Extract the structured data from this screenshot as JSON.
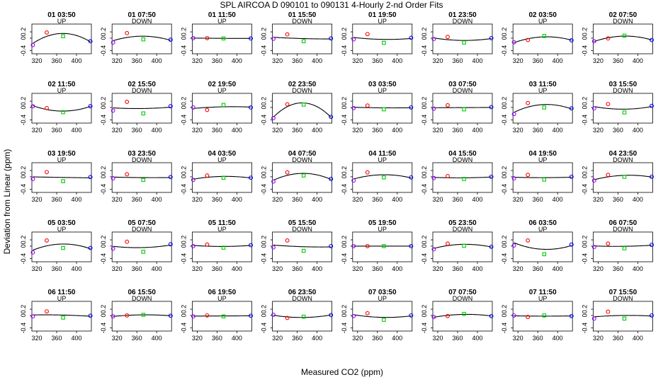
{
  "title": "SPL   AIRCOA D   090101 to 090131   4-Hourly 2-nd Order Fits",
  "xlabel": "Measured CO2 (ppm)",
  "ylabel": "Deviation from Linear (ppm)",
  "colors": {
    "fit_line": "#000000",
    "point_low": "#9900ff",
    "point_red": "#ff0000",
    "point_green": "#00cc00",
    "point_high": "#0000ff"
  },
  "chart_data": {
    "type": "scatter",
    "layout": "small-multiples 5 rows x 8 columns",
    "shared_axes": {
      "xlim": [
        310,
        430
      ],
      "xticks": [
        320,
        360,
        400
      ],
      "ylim": [
        -0.5,
        0.45
      ],
      "yticks": [
        -0.4,
        0,
        0.2
      ]
    },
    "x": [
      312,
      340,
      373,
      428
    ],
    "fit": "second-order polynomial",
    "panels": [
      {
        "time": "01 03:50",
        "direction": "UP",
        "y": [
          -0.22,
          0.18,
          0.06,
          -0.1
        ]
      },
      {
        "time": "01 07:50",
        "direction": "DOWN",
        "y": [
          -0.14,
          0.16,
          -0.04,
          -0.05
        ]
      },
      {
        "time": "01 11:50",
        "direction": "UP",
        "y": [
          0.0,
          0.0,
          -0.01,
          -0.01
        ]
      },
      {
        "time": "01 15:50",
        "direction": "DOWN",
        "y": [
          -0.02,
          0.12,
          -0.1,
          -0.01
        ]
      },
      {
        "time": "01 19:50",
        "direction": "UP",
        "y": [
          -0.04,
          0.13,
          -0.15,
          0.01
        ]
      },
      {
        "time": "01 23:50",
        "direction": "DOWN",
        "y": [
          -0.03,
          0.04,
          -0.14,
          0.0
        ]
      },
      {
        "time": "02 03:50",
        "direction": "UP",
        "y": [
          -0.13,
          -0.06,
          0.07,
          -0.07
        ]
      },
      {
        "time": "02 07:50",
        "direction": "DOWN",
        "y": [
          -0.1,
          -0.01,
          0.08,
          -0.06
        ]
      },
      {
        "time": "02 11:50",
        "direction": "UP",
        "y": [
          0.04,
          -0.02,
          -0.15,
          0.04
        ]
      },
      {
        "time": "02 15:50",
        "direction": "DOWN",
        "y": [
          -0.1,
          0.18,
          -0.19,
          0.04
        ]
      },
      {
        "time": "02 19:50",
        "direction": "UP",
        "y": [
          0.0,
          -0.08,
          0.08,
          0.0
        ]
      },
      {
        "time": "02 23:50",
        "direction": "DOWN",
        "y": [
          -0.34,
          0.1,
          0.09,
          -0.3
        ]
      },
      {
        "time": "03 03:50",
        "direction": "UP",
        "y": [
          -0.02,
          0.06,
          -0.06,
          0.0
        ]
      },
      {
        "time": "03 07:50",
        "direction": "DOWN",
        "y": [
          -0.04,
          0.07,
          -0.06,
          0.01
        ]
      },
      {
        "time": "03 11:50",
        "direction": "UP",
        "y": [
          -0.21,
          0.14,
          0.0,
          -0.03
        ]
      },
      {
        "time": "03 15:50",
        "direction": "DOWN",
        "y": [
          -0.03,
          0.11,
          -0.16,
          0.05
        ]
      },
      {
        "time": "03 19:50",
        "direction": "UP",
        "y": [
          -0.07,
          0.15,
          -0.14,
          -0.01
        ]
      },
      {
        "time": "03 23:50",
        "direction": "DOWN",
        "y": [
          -0.05,
          0.08,
          -0.1,
          -0.01
        ]
      },
      {
        "time": "04 03:50",
        "direction": "UP",
        "y": [
          -0.1,
          0.04,
          -0.03,
          -0.03
        ]
      },
      {
        "time": "04 07:50",
        "direction": "DOWN",
        "y": [
          -0.15,
          0.14,
          0.04,
          -0.07
        ]
      },
      {
        "time": "04 11:50",
        "direction": "UP",
        "y": [
          -0.12,
          0.14,
          -0.02,
          -0.02
        ]
      },
      {
        "time": "04 15:50",
        "direction": "DOWN",
        "y": [
          -0.04,
          0.02,
          -0.07,
          0.0
        ]
      },
      {
        "time": "04 19:50",
        "direction": "UP",
        "y": [
          -0.05,
          0.06,
          -0.09,
          0.0
        ]
      },
      {
        "time": "04 23:50",
        "direction": "DOWN",
        "y": [
          -0.12,
          0.06,
          0.0,
          0.0
        ]
      },
      {
        "time": "05 03:50",
        "direction": "UP",
        "y": [
          -0.2,
          0.18,
          -0.06,
          -0.06
        ]
      },
      {
        "time": "05 07:50",
        "direction": "DOWN",
        "y": [
          -0.08,
          0.14,
          -0.18,
          0.06
        ]
      },
      {
        "time": "05 11:50",
        "direction": "UP",
        "y": [
          0.0,
          0.05,
          -0.05,
          0.03
        ]
      },
      {
        "time": "05 15:50",
        "direction": "DOWN",
        "y": [
          -0.04,
          0.18,
          -0.15,
          0.0
        ]
      },
      {
        "time": "05 19:50",
        "direction": "UP",
        "y": [
          0.0,
          0.0,
          0.0,
          0.0
        ]
      },
      {
        "time": "05 23:50",
        "direction": "DOWN",
        "y": [
          -0.1,
          0.08,
          0.01,
          -0.02
        ]
      },
      {
        "time": "06 03:50",
        "direction": "UP",
        "y": [
          0.02,
          0.18,
          -0.26,
          0.05
        ]
      },
      {
        "time": "06 07:50",
        "direction": "DOWN",
        "y": [
          -0.03,
          0.08,
          -0.07,
          0.04
        ]
      },
      {
        "time": "06 11:50",
        "direction": "UP",
        "y": [
          -0.03,
          0.13,
          -0.07,
          -0.01
        ]
      },
      {
        "time": "06 15:50",
        "direction": "DOWN",
        "y": [
          -0.03,
          0.0,
          0.02,
          -0.01
        ]
      },
      {
        "time": "06 19:50",
        "direction": "UP",
        "y": [
          -0.03,
          0.0,
          -0.03,
          -0.01
        ]
      },
      {
        "time": "06 23:50",
        "direction": "DOWN",
        "y": [
          0.02,
          -0.08,
          -0.04,
          0.01
        ]
      },
      {
        "time": "07 03:50",
        "direction": "UP",
        "y": [
          -0.02,
          0.07,
          -0.14,
          0.0
        ]
      },
      {
        "time": "07 07:50",
        "direction": "DOWN",
        "y": [
          -0.05,
          -0.02,
          0.05,
          -0.02
        ]
      },
      {
        "time": "07 11:50",
        "direction": "UP",
        "y": [
          0.0,
          -0.05,
          0.0,
          -0.02
        ]
      },
      {
        "time": "07 15:50",
        "direction": "DOWN",
        "y": [
          -0.1,
          0.12,
          -0.1,
          0.0
        ]
      }
    ]
  }
}
